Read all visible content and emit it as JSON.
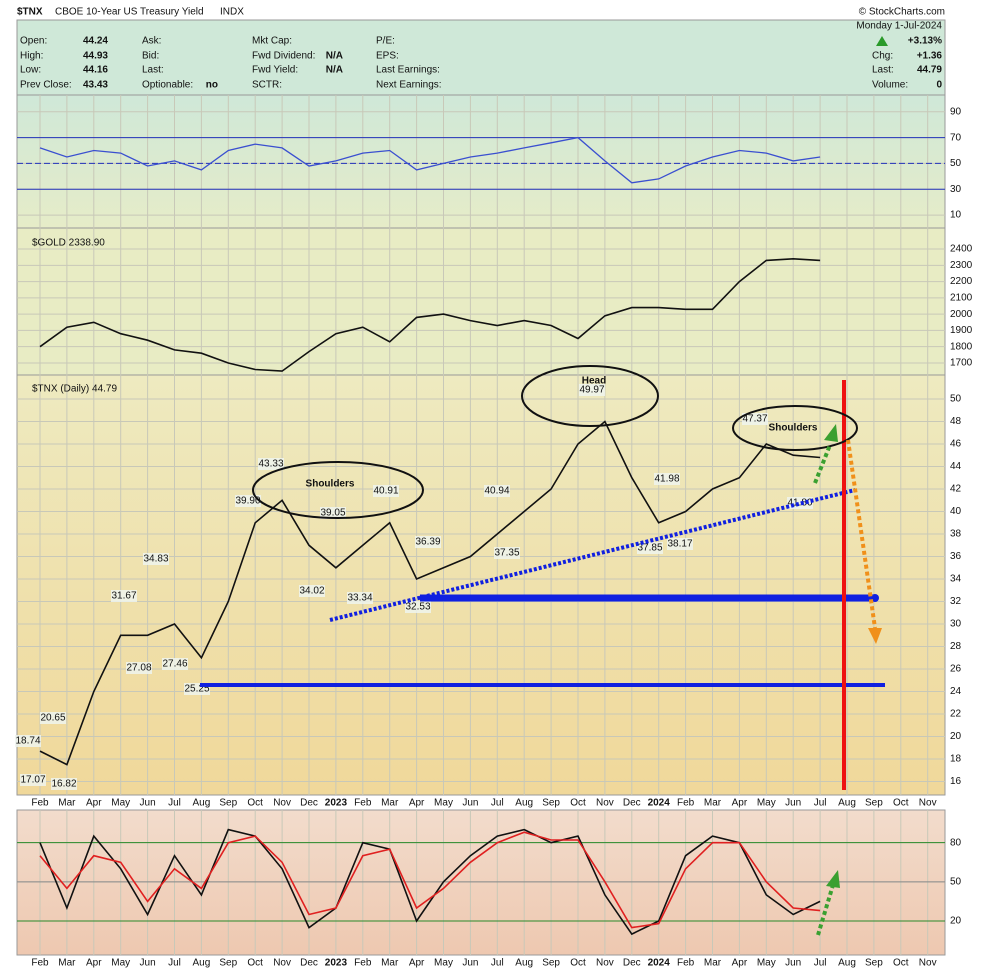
{
  "header": {
    "symbol": "$TNX",
    "name": "CBOE 10-Year US Treasury Yield",
    "exchange": "INDX",
    "source": "© StockCharts.com",
    "quote": [
      {
        "label": "Open:",
        "value": "44.24"
      },
      {
        "label": "High:",
        "value": "44.93"
      },
      {
        "label": "Low:",
        "value": "44.16"
      },
      {
        "label": "Prev Close:",
        "value": "43.43"
      }
    ],
    "quote2": [
      {
        "label": "Ask:"
      },
      {
        "label": "Bid:"
      },
      {
        "label": "Last:"
      },
      {
        "label": "Optionable:",
        "value": "no"
      }
    ],
    "fundamentals": [
      {
        "label": "Mkt Cap:"
      },
      {
        "label": "Fwd Dividend:",
        "value": "N/A"
      },
      {
        "label": "Fwd Yield:",
        "value": "N/A"
      },
      {
        "label": "SCTR:"
      }
    ],
    "earnings": [
      "P/E:",
      "EPS:",
      "Last Earnings:",
      "Next Earnings:"
    ],
    "summary": {
      "date": "Monday  1-Jul-2024",
      "change_pct": "+3.13%",
      "rows": [
        {
          "label": "Chg:",
          "value": "+1.36"
        },
        {
          "label": "Last:",
          "value": "44.79"
        },
        {
          "label": "Volume:",
          "value": "0"
        }
      ]
    }
  },
  "chart_data": [
    {
      "type": "line",
      "ylim": [
        0,
        103
      ],
      "yticks": [
        10,
        30,
        50,
        70,
        90
      ],
      "hlines": [
        70,
        50,
        30
      ],
      "series": [
        {
          "color": "#3a4fd0",
          "values": [
            62,
            55,
            60,
            58,
            48,
            52,
            45,
            60,
            65,
            62,
            48,
            52,
            58,
            60,
            45,
            50,
            55,
            58,
            62,
            66,
            70,
            52,
            35,
            38,
            48,
            55,
            60,
            58,
            52,
            55,
            null,
            null,
            null,
            null
          ]
        }
      ]
    },
    {
      "type": "line",
      "title": "$GOLD 2338.90",
      "ylim": [
        1626,
        2474
      ],
      "yticks": [
        1700,
        1800,
        1900,
        2000,
        2100,
        2200,
        2300,
        2400
      ],
      "series": [
        {
          "color": "#111111",
          "values": [
            1800,
            1920,
            1950,
            1880,
            1840,
            1780,
            1760,
            1700,
            1660,
            1650,
            1770,
            1880,
            1920,
            1830,
            1980,
            2000,
            1960,
            1930,
            1960,
            1930,
            1850,
            1990,
            2040,
            2040,
            2030,
            2030,
            2200,
            2330,
            2340,
            2330,
            null,
            null,
            null,
            null
          ]
        }
      ]
    },
    {
      "type": "line",
      "title": "$TNX (Daily) 44.79",
      "ylim": [
        14.8,
        51.6
      ],
      "yticks": [
        16,
        18,
        20,
        22,
        24,
        26,
        28,
        30,
        32,
        34,
        36,
        38,
        40,
        42,
        44,
        46,
        48,
        50
      ],
      "categories": [
        "Feb",
        "Mar",
        "Apr",
        "May",
        "Jun",
        "Jul",
        "Aug",
        "Sep",
        "Oct",
        "Nov",
        "Dec",
        "2023",
        "Feb",
        "Mar",
        "Apr",
        "May",
        "Jun",
        "Jul",
        "Aug",
        "Sep",
        "Oct",
        "Nov",
        "Dec",
        "2024",
        "Feb",
        "Mar",
        "Apr",
        "May",
        "Jun",
        "Jul",
        "Aug",
        "Sep",
        "Oct",
        "Nov"
      ],
      "series": [
        {
          "color": "#111111",
          "values": [
            18.7,
            17.5,
            24,
            29,
            29,
            30,
            27,
            32,
            39,
            41,
            37,
            35,
            37,
            39,
            34,
            35,
            36,
            38,
            40,
            42,
            46,
            48,
            43,
            39,
            40,
            42,
            43,
            46,
            45,
            44.8,
            null,
            null,
            null,
            null
          ]
        }
      ],
      "annotations": [
        "Shoulders",
        "Head",
        "Shoulders"
      ],
      "pivots": {
        "values": [
          18.74,
          17.07,
          20.65,
          16.82,
          31.67,
          34.83,
          27.08,
          27.46,
          25.25,
          39.9,
          43.33,
          39.05,
          40.91,
          34.02,
          33.34,
          32.53,
          36.39,
          37.35,
          40.94,
          49.97,
          37.85,
          38.17,
          41.98,
          47.37,
          41.8
        ],
        "value_labels": [
          "18.74",
          "17.07",
          "20.65",
          "16.82",
          "31.67",
          "34.83",
          "27.08",
          "27.46",
          "25.25",
          "39.90",
          "43.33",
          "39.05",
          "40.91",
          "34.02",
          "33.34",
          "32.53",
          "36.39",
          "37.35",
          "40.94",
          "49.97",
          "37.85",
          "38.17",
          "41.98",
          "47.37",
          "41.80"
        ]
      }
    },
    {
      "type": "line",
      "ylim": [
        -6,
        105
      ],
      "yticks": [
        20,
        50,
        80
      ],
      "categories": [
        "Feb",
        "Mar",
        "Apr",
        "May",
        "Jun",
        "Jul",
        "Aug",
        "Sep",
        "Oct",
        "Nov",
        "Dec",
        "2023",
        "Feb",
        "Mar",
        "Apr",
        "May",
        "Jun",
        "Jul",
        "Aug",
        "Sep",
        "Oct",
        "Nov",
        "Dec",
        "2024",
        "Feb",
        "Mar",
        "Apr",
        "May",
        "Jun",
        "Jul",
        "Aug",
        "Sep",
        "Oct",
        "Nov"
      ],
      "series": [
        {
          "color": "#111111",
          "values": [
            80,
            30,
            85,
            60,
            25,
            70,
            40,
            90,
            85,
            60,
            15,
            30,
            80,
            75,
            20,
            50,
            70,
            85,
            90,
            80,
            85,
            40,
            10,
            20,
            70,
            85,
            80,
            40,
            25,
            35,
            null,
            null,
            null,
            null
          ]
        },
        {
          "color": "#e02020",
          "values": [
            70,
            45,
            70,
            65,
            35,
            60,
            45,
            80,
            85,
            65,
            25,
            30,
            70,
            75,
            30,
            45,
            65,
            80,
            88,
            82,
            82,
            50,
            15,
            18,
            60,
            80,
            80,
            50,
            30,
            28,
            null,
            null,
            null,
            null
          ]
        }
      ]
    }
  ]
}
